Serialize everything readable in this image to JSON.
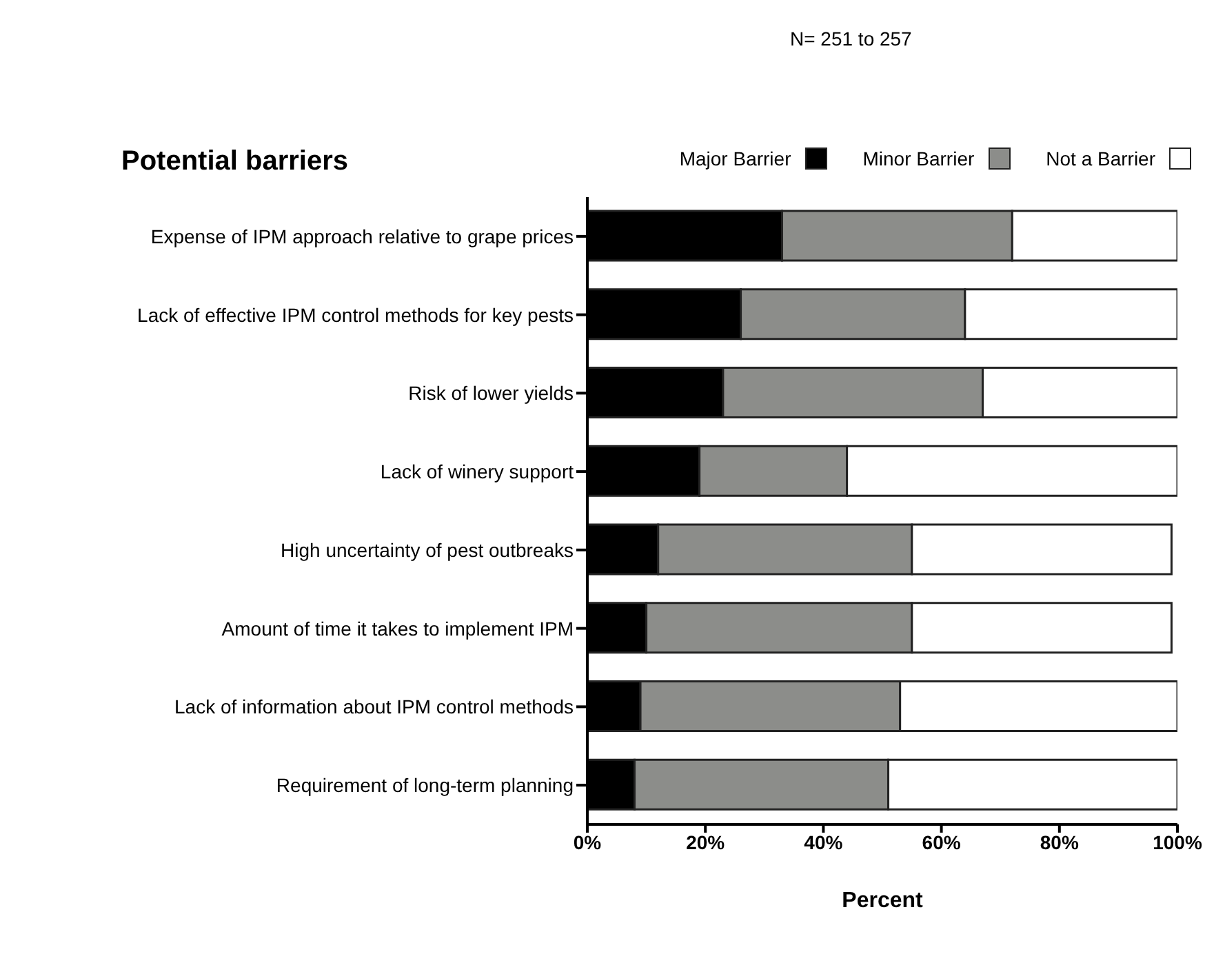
{
  "chart_data": {
    "type": "bar",
    "orientation": "horizontal",
    "stacked": true,
    "title": "Potential barriers",
    "subtitle": "N= 251 to 257",
    "xlabel": "Percent",
    "categories": [
      "Expense of IPM approach relative to grape prices",
      "Lack of effective IPM control methods for key pests",
      "Risk of lower yields",
      "Lack of winery support",
      "High uncertainty of pest outbreaks",
      "Amount of time it takes to implement IPM",
      "Lack of information about IPM control methods",
      "Requirement of long-term planning"
    ],
    "series": [
      {
        "name": "Major Barrier",
        "color": "#000000",
        "values": [
          33,
          26,
          23,
          19,
          12,
          10,
          9,
          8
        ]
      },
      {
        "name": "Minor Barrier",
        "color": "#8c8d8a",
        "values": [
          39,
          38,
          44,
          25,
          43,
          45,
          44,
          43
        ]
      },
      {
        "name": "Not a Barrier",
        "color": "#ffffff",
        "values": [
          28,
          36,
          33,
          56,
          44,
          44,
          47,
          49
        ]
      }
    ],
    "xlim": [
      0,
      100
    ],
    "xticks": [
      {
        "value": 0,
        "label": "0%"
      },
      {
        "value": 20,
        "label": "20%"
      },
      {
        "value": 40,
        "label": "40%"
      },
      {
        "value": 60,
        "label": "60%"
      },
      {
        "value": 80,
        "label": "80%"
      },
      {
        "value": 100,
        "label": "100%"
      }
    ],
    "grid": false,
    "legend": "top right"
  }
}
